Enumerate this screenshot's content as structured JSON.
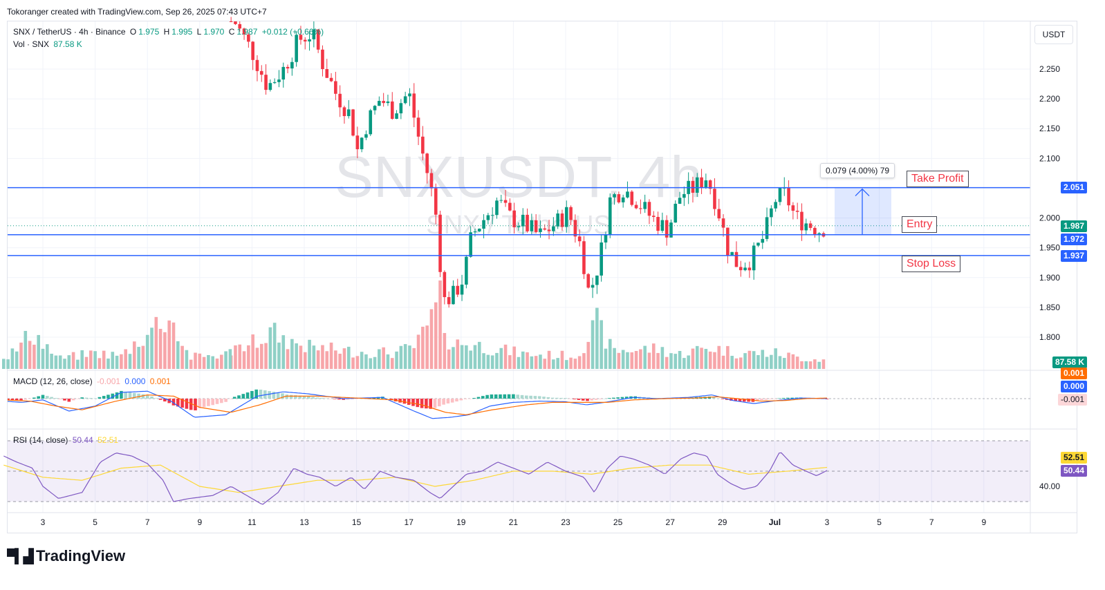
{
  "credit": "Tokoranger created with TradingView.com, Sep 26, 2025 07:43 UTC+7",
  "legend": {
    "symbol": "SNX / TetherUS · 4h · Binance",
    "o_label": "O",
    "o_val": "1.975",
    "h_label": "H",
    "h_val": "1.995",
    "l_label": "L",
    "l_val": "1.970",
    "c_label": "C",
    "c_val": "1.987",
    "chg": "+0.012 (+0.66%)",
    "vol_label": "Vol · SNX",
    "vol_val": "87.58 K"
  },
  "watermark": {
    "main": "SNXUSDT, 4h",
    "sub": "SNX / TetherUS"
  },
  "currency_button": "USDT",
  "macd_legend": {
    "label": "MACD (12, 26, close)",
    "v1": "-0.001",
    "v2": "0.000",
    "v3": "0.001"
  },
  "rsi_legend": {
    "label": "RSI (14, close)",
    "v1": "50.44",
    "v2": "52.51"
  },
  "price_tags": {
    "tp": "2.051",
    "current": "1.987",
    "entry": "1.972",
    "sl": "1.937",
    "volume": "87.58 K",
    "macd_signal": "0.001",
    "macd_line": "0.000",
    "macd_hist": "-0.001",
    "rsi_ma": "52.51",
    "rsi": "50.44"
  },
  "labels": {
    "take_profit": "Take Profit",
    "entry": "Entry",
    "stop_loss": "Stop Loss"
  },
  "measure": "0.079 (4.00%) 79",
  "logo": "TradingView",
  "colors": {
    "up": "#089981",
    "down": "#f23645",
    "line": "#2962ff",
    "macd_signal": "#ff6d00",
    "rsi": "#7e57c2",
    "rsi_ma": "#fdd835"
  },
  "chart_data": {
    "type": "candlestick",
    "symbol": "SNX / TetherUS",
    "interval": "4h",
    "y_ticks": [
      "2.250",
      "2.200",
      "2.150",
      "2.100",
      "2.000",
      "1.950",
      "1.900",
      "1.850",
      "1.800"
    ],
    "x_ticks": [
      "3",
      "5",
      "7",
      "9",
      "11",
      "13",
      "15",
      "17",
      "19",
      "21",
      "23",
      "25",
      "27",
      "29",
      "Jul",
      "3",
      "5",
      "7",
      "9"
    ],
    "x_tick_days": [
      3,
      5,
      7,
      9,
      11,
      13,
      15,
      17,
      19,
      21,
      23,
      25,
      27,
      29,
      31,
      33,
      35,
      37,
      39
    ],
    "ylim": [
      1.77,
      2.33
    ],
    "levels": {
      "take_profit": 2.051,
      "entry": 1.972,
      "stop_loss": 1.937,
      "current": 1.987
    },
    "last_bar": {
      "open": 1.975,
      "high": 1.995,
      "low": 1.97,
      "close": 1.987,
      "volume": "87.58K"
    },
    "rsi_ticks": [
      "40.00"
    ],
    "rsi_bands": [
      70,
      50,
      30
    ],
    "close_path": [
      [
        1.5,
        2.33
      ],
      [
        6.2,
        2.33
      ],
      [
        10.2,
        2.34
      ],
      [
        11.0,
        2.28
      ],
      [
        11.6,
        2.22
      ],
      [
        12.2,
        2.25
      ],
      [
        12.8,
        2.3
      ],
      [
        13.3,
        2.31
      ],
      [
        13.7,
        2.26
      ],
      [
        14.2,
        2.21
      ],
      [
        14.8,
        2.17
      ],
      [
        15.0,
        2.11
      ],
      [
        15.4,
        2.16
      ],
      [
        15.9,
        2.2
      ],
      [
        16.4,
        2.18
      ],
      [
        17.0,
        2.21
      ],
      [
        17.4,
        2.13
      ],
      [
        17.8,
        2.06
      ],
      [
        18.1,
        1.99
      ],
      [
        18.3,
        1.86
      ],
      [
        18.7,
        1.87
      ],
      [
        19.1,
        1.9
      ],
      [
        19.4,
        1.97
      ],
      [
        19.9,
        2.0
      ],
      [
        20.4,
        2.03
      ],
      [
        20.9,
        2.0
      ],
      [
        21.4,
        1.99
      ],
      [
        22.0,
        1.97
      ],
      [
        22.6,
        1.99
      ],
      [
        23.1,
        2.01
      ],
      [
        23.6,
        1.95
      ],
      [
        23.9,
        1.87
      ],
      [
        24.3,
        1.93
      ],
      [
        24.7,
        2.03
      ],
      [
        25.2,
        2.05
      ],
      [
        25.7,
        2.03
      ],
      [
        26.3,
        2.0
      ],
      [
        26.9,
        1.98
      ],
      [
        27.4,
        2.04
      ],
      [
        27.9,
        2.05
      ],
      [
        28.4,
        2.07
      ],
      [
        28.8,
        2.02
      ],
      [
        29.2,
        1.95
      ],
      [
        29.6,
        1.92
      ],
      [
        30.1,
        1.93
      ],
      [
        30.6,
        1.97
      ],
      [
        31.0,
        2.03
      ],
      [
        31.4,
        2.04
      ],
      [
        31.8,
        2.0
      ],
      [
        32.3,
        1.99
      ],
      [
        32.7,
        1.98
      ],
      [
        33.0,
        1.987
      ]
    ],
    "volume_profile": [
      [
        1.5,
        0.16
      ],
      [
        2.0,
        0.26
      ],
      [
        2.6,
        0.52
      ],
      [
        3.1,
        0.32
      ],
      [
        3.6,
        0.14
      ],
      [
        5.0,
        0.22
      ],
      [
        6.0,
        0.18
      ],
      [
        7.8,
        0.75
      ],
      [
        8.6,
        0.16
      ],
      [
        10.0,
        0.2
      ],
      [
        11.2,
        0.38
      ],
      [
        11.8,
        0.5
      ],
      [
        12.3,
        0.4
      ],
      [
        13.2,
        0.3
      ],
      [
        14.5,
        0.25
      ],
      [
        16.5,
        0.22
      ],
      [
        17.3,
        0.32
      ],
      [
        18.2,
        0.9
      ],
      [
        18.6,
        0.32
      ],
      [
        19.0,
        0.36
      ],
      [
        20.0,
        0.3
      ],
      [
        21.5,
        0.2
      ],
      [
        23.4,
        0.18
      ],
      [
        24.2,
        0.62
      ],
      [
        24.8,
        0.25
      ],
      [
        26.5,
        0.28
      ],
      [
        27.3,
        0.2
      ],
      [
        28.5,
        0.3
      ],
      [
        29.6,
        0.22
      ],
      [
        31.0,
        0.22
      ],
      [
        32.0,
        0.15
      ],
      [
        33.0,
        0.12
      ]
    ],
    "macd_line": [
      [
        1.5,
        -0.004
      ],
      [
        2.2,
        -0.006
      ],
      [
        3.0,
        -0.002
      ],
      [
        4.0,
        -0.02
      ],
      [
        5.0,
        -0.012
      ],
      [
        6.0,
        0.01
      ],
      [
        7.0,
        0.012
      ],
      [
        7.9,
        -0.004
      ],
      [
        8.8,
        -0.03
      ],
      [
        10.0,
        -0.026
      ],
      [
        11.2,
        0.004
      ],
      [
        12.2,
        0.011
      ],
      [
        13.1,
        0.008
      ],
      [
        14.5,
        0.0
      ],
      [
        16.0,
        0.002
      ],
      [
        17.2,
        -0.02
      ],
      [
        17.9,
        -0.032
      ],
      [
        18.6,
        -0.03
      ],
      [
        19.3,
        -0.026
      ],
      [
        20.1,
        -0.012
      ],
      [
        21.0,
        -0.006
      ],
      [
        22.0,
        -0.004
      ],
      [
        23.0,
        -0.005
      ],
      [
        23.8,
        -0.01
      ],
      [
        24.5,
        -0.006
      ],
      [
        25.6,
        0.002
      ],
      [
        26.5,
        0.0
      ],
      [
        27.7,
        0.002
      ],
      [
        28.6,
        0.006
      ],
      [
        29.4,
        -0.003
      ],
      [
        30.2,
        -0.008
      ],
      [
        31.1,
        -0.003
      ],
      [
        32.0,
        0.001
      ],
      [
        33.0,
        0.0
      ]
    ],
    "macd_signal": [
      [
        1.5,
        -0.002
      ],
      [
        2.5,
        -0.004
      ],
      [
        3.5,
        -0.012
      ],
      [
        4.5,
        -0.018
      ],
      [
        5.8,
        -0.004
      ],
      [
        7.0,
        0.006
      ],
      [
        8.0,
        0.004
      ],
      [
        9.0,
        -0.014
      ],
      [
        10.2,
        -0.022
      ],
      [
        11.3,
        -0.01
      ],
      [
        12.3,
        0.004
      ],
      [
        13.5,
        0.004
      ],
      [
        15.0,
        0.001
      ],
      [
        16.4,
        -0.002
      ],
      [
        17.5,
        -0.01
      ],
      [
        18.4,
        -0.022
      ],
      [
        19.2,
        -0.026
      ],
      [
        20.2,
        -0.018
      ],
      [
        21.5,
        -0.01
      ],
      [
        22.5,
        -0.006
      ],
      [
        23.6,
        -0.006
      ],
      [
        24.6,
        -0.006
      ],
      [
        25.6,
        -0.002
      ],
      [
        26.8,
        0.0
      ],
      [
        28.0,
        0.001
      ],
      [
        28.8,
        0.003
      ],
      [
        29.6,
        0.0
      ],
      [
        30.5,
        -0.004
      ],
      [
        31.4,
        -0.003
      ],
      [
        32.2,
        0.0
      ],
      [
        33.0,
        0.001
      ]
    ],
    "rsi": [
      [
        1.5,
        60
      ],
      [
        2.0,
        56
      ],
      [
        2.6,
        52
      ],
      [
        3.0,
        40
      ],
      [
        3.6,
        32
      ],
      [
        4.5,
        36
      ],
      [
        5.2,
        56
      ],
      [
        5.8,
        62
      ],
      [
        6.4,
        60
      ],
      [
        7.0,
        55
      ],
      [
        7.6,
        44
      ],
      [
        8.0,
        30
      ],
      [
        8.6,
        32
      ],
      [
        9.5,
        34
      ],
      [
        10.2,
        40
      ],
      [
        10.8,
        34
      ],
      [
        11.4,
        28
      ],
      [
        12.0,
        36
      ],
      [
        12.6,
        52
      ],
      [
        13.1,
        48
      ],
      [
        13.6,
        46
      ],
      [
        14.2,
        40
      ],
      [
        14.8,
        46
      ],
      [
        15.3,
        38
      ],
      [
        15.9,
        50
      ],
      [
        16.5,
        46
      ],
      [
        17.2,
        44
      ],
      [
        17.8,
        36
      ],
      [
        18.2,
        32
      ],
      [
        18.7,
        40
      ],
      [
        19.2,
        48
      ],
      [
        19.8,
        50
      ],
      [
        20.4,
        56
      ],
      [
        21.0,
        52
      ],
      [
        21.6,
        48
      ],
      [
        22.3,
        56
      ],
      [
        23.0,
        50
      ],
      [
        23.7,
        46
      ],
      [
        24.1,
        36
      ],
      [
        24.6,
        52
      ],
      [
        25.1,
        60
      ],
      [
        25.6,
        58
      ],
      [
        26.2,
        54
      ],
      [
        26.8,
        48
      ],
      [
        27.4,
        58
      ],
      [
        27.9,
        62
      ],
      [
        28.4,
        60
      ],
      [
        28.8,
        48
      ],
      [
        29.3,
        42
      ],
      [
        29.8,
        38
      ],
      [
        30.3,
        40
      ],
      [
        30.8,
        50
      ],
      [
        31.2,
        63
      ],
      [
        31.7,
        54
      ],
      [
        32.2,
        50
      ],
      [
        32.6,
        47
      ],
      [
        33.0,
        50.44
      ]
    ],
    "rsi_ma": [
      [
        1.5,
        54
      ],
      [
        3.0,
        46
      ],
      [
        4.5,
        44
      ],
      [
        6.0,
        52
      ],
      [
        7.5,
        54
      ],
      [
        9.0,
        40
      ],
      [
        10.5,
        36
      ],
      [
        12.0,
        40
      ],
      [
        13.5,
        44
      ],
      [
        15.0,
        44
      ],
      [
        16.5,
        46
      ],
      [
        18.0,
        40
      ],
      [
        19.5,
        44
      ],
      [
        21.0,
        50
      ],
      [
        22.5,
        50
      ],
      [
        24.0,
        48
      ],
      [
        25.5,
        52
      ],
      [
        27.0,
        54
      ],
      [
        28.5,
        54
      ],
      [
        30.0,
        48
      ],
      [
        31.5,
        50
      ],
      [
        33.0,
        52.51
      ]
    ]
  }
}
